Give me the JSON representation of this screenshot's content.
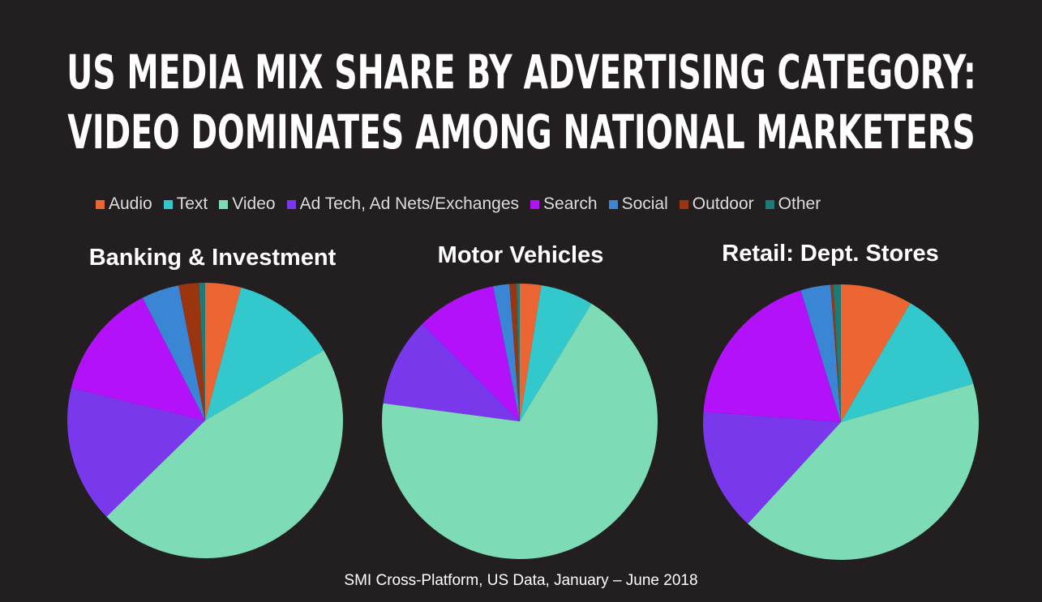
{
  "title_line1": "US MEDIA MIX SHARE BY ADVERTISING CATEGORY:",
  "title_line2": "VIDEO DOMINATES AMONG NATIONAL MARKETERS",
  "source": "SMI Cross-Platform, US Data, January – June 2018",
  "chart_data": [
    {
      "type": "pie",
      "title": "Banking & Investment",
      "legend": "top",
      "categories": [
        "Audio",
        "Text",
        "Video",
        "Ad Tech, Ad Nets/Exchanges",
        "Search",
        "Social",
        "Outdoor",
        "Other"
      ],
      "values": [
        4.2,
        12.3,
        46.2,
        16.1,
        13.7,
        4.4,
        2.4,
        0.7
      ]
    },
    {
      "type": "pie",
      "title": "Motor Vehicles",
      "legend": "top",
      "categories": [
        "Audio",
        "Text",
        "Video",
        "Ad Tech, Ad Nets/Exchanges",
        "Search",
        "Social",
        "Outdoor",
        "Other"
      ],
      "values": [
        2.5,
        6.2,
        68.4,
        10.4,
        9.4,
        1.9,
        0.8,
        0.4
      ]
    },
    {
      "type": "pie",
      "title": "Retail: Dept. Stores",
      "legend": "top",
      "categories": [
        "Audio",
        "Text",
        "Video",
        "Ad Tech, Ad Nets/Exchanges",
        "Search",
        "Social",
        "Outdoor",
        "Other"
      ],
      "values": [
        8.4,
        12.1,
        41.3,
        14.4,
        19.1,
        3.5,
        0.3,
        0.9
      ]
    }
  ],
  "colors": [
    "#ec6633",
    "#33c9cc",
    "#7ddbb6",
    "#7a38ec",
    "#b311fa",
    "#3a86d4",
    "#9a3510",
    "#1e7a77"
  ]
}
